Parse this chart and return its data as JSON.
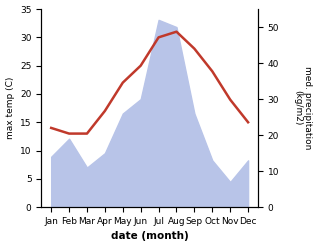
{
  "months": [
    "Jan",
    "Feb",
    "Mar",
    "Apr",
    "May",
    "Jun",
    "Jul",
    "Aug",
    "Sep",
    "Oct",
    "Nov",
    "Dec"
  ],
  "temperature": [
    14,
    13,
    13,
    17,
    22,
    25,
    30,
    31,
    28,
    24,
    19,
    15
  ],
  "precipitation": [
    14,
    19,
    11,
    15,
    26,
    30,
    52,
    50,
    26,
    13,
    7,
    13
  ],
  "temp_color": "#c0392b",
  "precip_color": "#b8c4e8",
  "xlabel": "date (month)",
  "ylabel_left": "max temp (C)",
  "ylabel_right": "med. precipitation\n(kg/m2)",
  "ylim_left": [
    0,
    35
  ],
  "ylim_right": [
    0,
    55
  ],
  "yticks_left": [
    0,
    5,
    10,
    15,
    20,
    25,
    30,
    35
  ],
  "yticks_right": [
    0,
    10,
    20,
    30,
    40,
    50
  ],
  "bg_color": "#ffffff",
  "line_width": 1.8
}
